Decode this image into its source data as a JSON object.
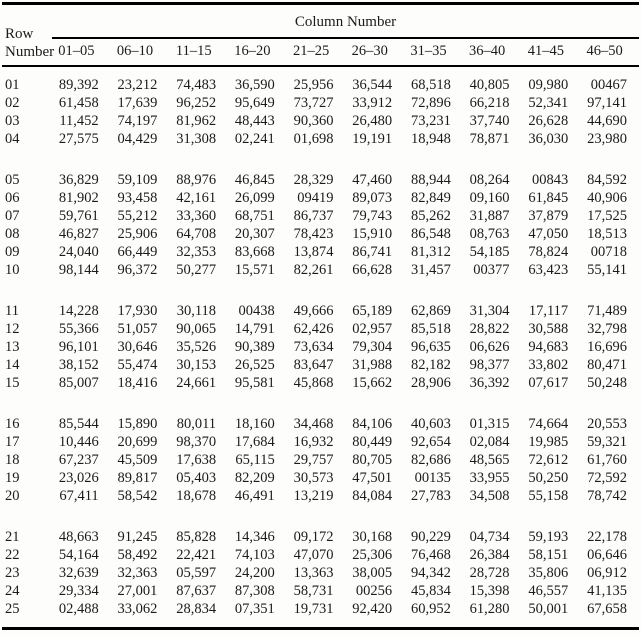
{
  "page": {
    "background_color": "#fdfdfc",
    "text_color": "#1b1b1b",
    "rule_color": "#000000"
  },
  "table": {
    "row_header_line1": "Row",
    "row_header_line2": "Number",
    "column_group_label": "Column Number",
    "column_headers": [
      "01–05",
      "06–10",
      "11–15",
      "16–20",
      "21–25",
      "26–30",
      "31–35",
      "36–40",
      "41–45",
      "46–50"
    ],
    "group_break_after_rows": [
      "04",
      "10",
      "15",
      "20"
    ],
    "rows": [
      {
        "row_number": "01",
        "values": [
          "89,392",
          "23,212",
          "74,483",
          "36,590",
          "25,956",
          "36,544",
          "68,518",
          "40,805",
          "09,980",
          "00467"
        ]
      },
      {
        "row_number": "02",
        "values": [
          "61,458",
          "17,639",
          "96,252",
          "95,649",
          "73,727",
          "33,912",
          "72,896",
          "66,218",
          "52,341",
          "97,141"
        ]
      },
      {
        "row_number": "03",
        "values": [
          "11,452",
          "74,197",
          "81,962",
          "48,443",
          "90,360",
          "26,480",
          "73,231",
          "37,740",
          "26,628",
          "44,690"
        ]
      },
      {
        "row_number": "04",
        "values": [
          "27,575",
          "04,429",
          "31,308",
          "02,241",
          "01,698",
          "19,191",
          "18,948",
          "78,871",
          "36,030",
          "23,980"
        ]
      },
      {
        "row_number": "05",
        "values": [
          "36,829",
          "59,109",
          "88,976",
          "46,845",
          "28,329",
          "47,460",
          "88,944",
          "08,264",
          "00843",
          "84,592"
        ]
      },
      {
        "row_number": "06",
        "values": [
          "81,902",
          "93,458",
          "42,161",
          "26,099",
          "09419",
          "89,073",
          "82,849",
          "09,160",
          "61,845",
          "40,906"
        ]
      },
      {
        "row_number": "07",
        "values": [
          "59,761",
          "55,212",
          "33,360",
          "68,751",
          "86,737",
          "79,743",
          "85,262",
          "31,887",
          "37,879",
          "17,525"
        ]
      },
      {
        "row_number": "08",
        "values": [
          "46,827",
          "25,906",
          "64,708",
          "20,307",
          "78,423",
          "15,910",
          "86,548",
          "08,763",
          "47,050",
          "18,513"
        ]
      },
      {
        "row_number": "09",
        "values": [
          "24,040",
          "66,449",
          "32,353",
          "83,668",
          "13,874",
          "86,741",
          "81,312",
          "54,185",
          "78,824",
          "00718"
        ]
      },
      {
        "row_number": "10",
        "values": [
          "98,144",
          "96,372",
          "50,277",
          "15,571",
          "82,261",
          "66,628",
          "31,457",
          "00377",
          "63,423",
          "55,141"
        ]
      },
      {
        "row_number": "11",
        "values": [
          "14,228",
          "17,930",
          "30,118",
          "00438",
          "49,666",
          "65,189",
          "62,869",
          "31,304",
          "17,117",
          "71,489"
        ]
      },
      {
        "row_number": "12",
        "values": [
          "55,366",
          "51,057",
          "90,065",
          "14,791",
          "62,426",
          "02,957",
          "85,518",
          "28,822",
          "30,588",
          "32,798"
        ]
      },
      {
        "row_number": "13",
        "values": [
          "96,101",
          "30,646",
          "35,526",
          "90,389",
          "73,634",
          "79,304",
          "96,635",
          "06,626",
          "94,683",
          "16,696"
        ]
      },
      {
        "row_number": "14",
        "values": [
          "38,152",
          "55,474",
          "30,153",
          "26,525",
          "83,647",
          "31,988",
          "82,182",
          "98,377",
          "33,802",
          "80,471"
        ]
      },
      {
        "row_number": "15",
        "values": [
          "85,007",
          "18,416",
          "24,661",
          "95,581",
          "45,868",
          "15,662",
          "28,906",
          "36,392",
          "07,617",
          "50,248"
        ]
      },
      {
        "row_number": "16",
        "values": [
          "85,544",
          "15,890",
          "80,011",
          "18,160",
          "34,468",
          "84,106",
          "40,603",
          "01,315",
          "74,664",
          "20,553"
        ]
      },
      {
        "row_number": "17",
        "values": [
          "10,446",
          "20,699",
          "98,370",
          "17,684",
          "16,932",
          "80,449",
          "92,654",
          "02,084",
          "19,985",
          "59,321"
        ]
      },
      {
        "row_number": "18",
        "values": [
          "67,237",
          "45,509",
          "17,638",
          "65,115",
          "29,757",
          "80,705",
          "82,686",
          "48,565",
          "72,612",
          "61,760"
        ]
      },
      {
        "row_number": "19",
        "values": [
          "23,026",
          "89,817",
          "05,403",
          "82,209",
          "30,573",
          "47,501",
          "00135",
          "33,955",
          "50,250",
          "72,592"
        ]
      },
      {
        "row_number": "20",
        "values": [
          "67,411",
          "58,542",
          "18,678",
          "46,491",
          "13,219",
          "84,084",
          "27,783",
          "34,508",
          "55,158",
          "78,742"
        ]
      },
      {
        "row_number": "21",
        "values": [
          "48,663",
          "91,245",
          "85,828",
          "14,346",
          "09,172",
          "30,168",
          "90,229",
          "04,734",
          "59,193",
          "22,178"
        ]
      },
      {
        "row_number": "22",
        "values": [
          "54,164",
          "58,492",
          "22,421",
          "74,103",
          "47,070",
          "25,306",
          "76,468",
          "26,384",
          "58,151",
          "06,646"
        ]
      },
      {
        "row_number": "23",
        "values": [
          "32,639",
          "32,363",
          "05,597",
          "24,200",
          "13,363",
          "38,005",
          "94,342",
          "28,728",
          "35,806",
          "06,912"
        ]
      },
      {
        "row_number": "24",
        "values": [
          "29,334",
          "27,001",
          "87,637",
          "87,308",
          "58,731",
          "00256",
          "45,834",
          "15,398",
          "46,557",
          "41,135"
        ]
      },
      {
        "row_number": "25",
        "values": [
          "02,488",
          "33,062",
          "28,834",
          "07,351",
          "19,731",
          "92,420",
          "60,952",
          "61,280",
          "50,001",
          "67,658"
        ]
      }
    ]
  }
}
